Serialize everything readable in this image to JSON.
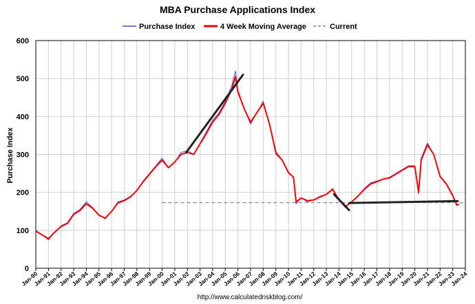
{
  "chart_data": {
    "type": "line",
    "title": "MBA Purchase Applications Index",
    "xlabel": "",
    "ylabel": "Purchase Index",
    "ylim": [
      0,
      600
    ],
    "yticks": [
      0,
      100,
      200,
      300,
      400,
      500,
      600
    ],
    "xlim": [
      1990,
      2024
    ],
    "xticks": [
      "Jan-90",
      "Jan-91",
      "Jan-92",
      "Jan-93",
      "Jan-94",
      "Jan-95",
      "Jan-96",
      "Jan-97",
      "Jan-98",
      "Jan-99",
      "Jan-00",
      "Jan-01",
      "Jan-02",
      "Jan-03",
      "Jan-04",
      "Jan-05",
      "Jan-06",
      "Jan-07",
      "Jan-08",
      "Jan-09",
      "Jan-10",
      "Jan-11",
      "Jan-12",
      "Jan-13",
      "Jan-14",
      "Jan-15",
      "Jan-16",
      "Jan-17",
      "Jan-18",
      "Jan-19",
      "Jan-20",
      "Jan-21",
      "Jan-22",
      "Jan-23",
      "Jan-24"
    ],
    "grid": true,
    "legend_placement": "top",
    "series": [
      {
        "name": "Purchase Index",
        "color": "#4a4ae6",
        "x": [
          1990.0,
          1990.5,
          1991.0,
          1991.5,
          1992.0,
          1992.5,
          1993.0,
          1993.5,
          1994.0,
          1994.5,
          1995.0,
          1995.5,
          1996.0,
          1996.5,
          1997.0,
          1997.5,
          1998.0,
          1998.5,
          1999.0,
          1999.5,
          2000.0,
          2000.5,
          2001.0,
          2001.5,
          2002.0,
          2002.5,
          2003.0,
          2003.5,
          2004.0,
          2004.5,
          2005.0,
          2005.5,
          2005.8,
          2006.0,
          2006.5,
          2007.0,
          2007.5,
          2008.0,
          2008.5,
          2009.0,
          2009.5,
          2010.0,
          2010.4,
          2010.6,
          2011.0,
          2011.5,
          2012.0,
          2012.5,
          2013.0,
          2013.5,
          2014.0,
          2014.5,
          2015.0,
          2015.5,
          2016.0,
          2016.5,
          2017.0,
          2017.5,
          2018.0,
          2018.5,
          2019.0,
          2019.5,
          2020.0,
          2020.3,
          2020.5,
          2021.0,
          2021.5,
          2022.0,
          2022.5,
          2023.0,
          2023.3,
          2023.5
        ],
        "values": [
          100,
          88,
          75,
          95,
          112,
          120,
          145,
          155,
          175,
          160,
          140,
          130,
          150,
          175,
          180,
          190,
          205,
          230,
          250,
          270,
          290,
          265,
          280,
          305,
          310,
          300,
          330,
          360,
          390,
          410,
          440,
          480,
          520,
          470,
          420,
          380,
          410,
          440,
          380,
          300,
          285,
          250,
          240,
          170,
          185,
          175,
          180,
          190,
          195,
          210,
          180,
          160,
          175,
          190,
          210,
          225,
          230,
          235,
          240,
          250,
          260,
          270,
          270,
          195,
          290,
          330,
          300,
          240,
          220,
          190,
          165,
          168
        ]
      },
      {
        "name": "4 Week Moving Average",
        "color": "#ff0000",
        "x": [
          1990.0,
          1990.5,
          1991.0,
          1991.5,
          1992.0,
          1992.5,
          1993.0,
          1993.5,
          1994.0,
          1994.5,
          1995.0,
          1995.5,
          1996.0,
          1996.5,
          1997.0,
          1997.5,
          1998.0,
          1998.5,
          1999.0,
          1999.5,
          2000.0,
          2000.5,
          2001.0,
          2001.5,
          2002.0,
          2002.5,
          2003.0,
          2003.5,
          2004.0,
          2004.5,
          2005.0,
          2005.5,
          2005.8,
          2006.0,
          2006.5,
          2007.0,
          2007.5,
          2008.0,
          2008.5,
          2009.0,
          2009.5,
          2010.0,
          2010.4,
          2010.6,
          2011.0,
          2011.5,
          2012.0,
          2012.5,
          2013.0,
          2013.5,
          2014.0,
          2014.5,
          2015.0,
          2015.5,
          2016.0,
          2016.5,
          2017.0,
          2017.5,
          2018.0,
          2018.5,
          2019.0,
          2019.5,
          2020.0,
          2020.3,
          2020.5,
          2021.0,
          2021.5,
          2022.0,
          2022.5,
          2023.0,
          2023.3,
          2023.5
        ],
        "values": [
          98,
          88,
          78,
          95,
          110,
          118,
          142,
          152,
          170,
          158,
          140,
          132,
          150,
          172,
          178,
          188,
          205,
          228,
          248,
          268,
          285,
          265,
          280,
          300,
          305,
          300,
          328,
          355,
          385,
          405,
          435,
          470,
          505,
          465,
          420,
          385,
          410,
          435,
          380,
          305,
          285,
          252,
          240,
          175,
          185,
          178,
          180,
          188,
          195,
          208,
          180,
          162,
          175,
          190,
          208,
          222,
          228,
          235,
          238,
          248,
          258,
          268,
          268,
          200,
          285,
          325,
          300,
          242,
          222,
          192,
          168,
          168
        ]
      },
      {
        "name": "Current",
        "color": "#888888",
        "dashed": true,
        "x": [
          2000.0,
          2024.0
        ],
        "values": [
          173,
          173
        ]
      }
    ],
    "trend_lines": [
      {
        "color": "#222222",
        "x": [
          2001.9,
          2006.4
        ],
        "values": [
          305,
          510
        ]
      },
      {
        "color": "#222222",
        "x": [
          2013.6,
          2014.8
        ],
        "values": [
          195,
          153
        ]
      },
      {
        "color": "#222222",
        "x": [
          2014.8,
          2023.4
        ],
        "values": [
          172,
          177
        ]
      }
    ],
    "footer": "http://www.calculatedriskblog.com/"
  }
}
